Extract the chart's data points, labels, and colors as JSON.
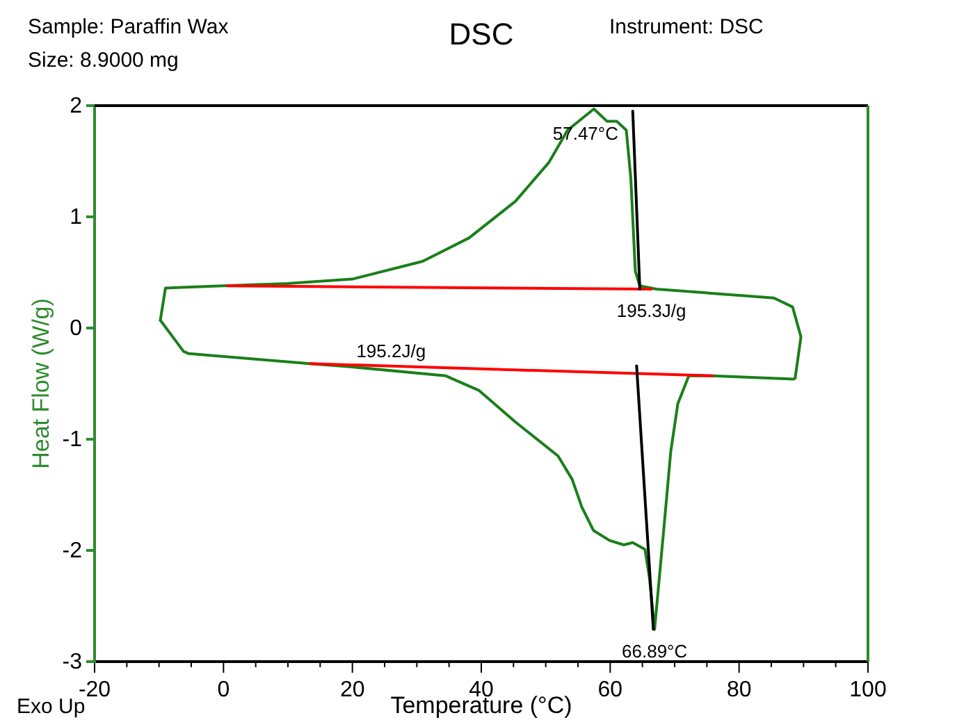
{
  "chart_data": {
    "type": "line",
    "title": "DSC",
    "xlabel": "Temperature (°C)",
    "ylabel": "Heat Flow (W/g)",
    "xlim": [
      -20,
      100
    ],
    "ylim": [
      -3,
      2
    ],
    "xticks": [
      -20,
      {
        "value": -15,
        "label": null
      },
      {
        "value": -10,
        "label": null
      },
      {
        "value": -5,
        "label": null
      },
      0,
      {
        "value": 5,
        "label": null
      },
      {
        "value": 10,
        "label": null
      },
      {
        "value": 15,
        "label": null
      },
      20,
      {
        "value": 25,
        "label": null
      },
      {
        "value": 30,
        "label": null
      },
      {
        "value": 35,
        "label": null
      },
      40,
      {
        "value": 45,
        "label": null
      },
      {
        "value": 50,
        "label": null
      },
      {
        "value": 55,
        "label": null
      },
      60,
      {
        "value": 65,
        "label": null
      },
      {
        "value": 70,
        "label": null
      },
      {
        "value": 75,
        "label": null
      },
      80,
      {
        "value": 85,
        "label": null
      },
      {
        "value": 90,
        "label": null
      },
      {
        "value": 95,
        "label": null
      },
      100
    ],
    "yticks": [
      -3,
      -2,
      -1,
      0,
      1,
      2
    ],
    "series": [
      {
        "color": "#1a7f1a",
        "x": [
          -9.8,
          -9.0,
          0,
          9.8,
          20,
          30.9,
          38.1,
          45.3,
          50.5,
          53.4,
          57.47,
          59.5,
          61,
          62.5,
          63.2,
          63.9,
          64.6,
          67.2,
          85.4,
          88.3,
          89.6,
          88.7
        ],
        "values": [
          0.07,
          0.36,
          0.38,
          0.4,
          0.44,
          0.6,
          0.81,
          1.14,
          1.49,
          1.78,
          1.97,
          1.86,
          1.86,
          1.78,
          1.35,
          0.51,
          0.38,
          0.35,
          0.27,
          0.19,
          -0.08,
          -0.45
        ]
      },
      {
        "color": "#1a7f1a",
        "x": [
          -9.8,
          -6.2,
          -5.4,
          13.4,
          20,
          34.5,
          39.6,
          45.4,
          51.9,
          54.1,
          55.6,
          57.4,
          59.9,
          62.1,
          63.5,
          65.4,
          66.1,
          66.89,
          68.3,
          69.4,
          70.5,
          72.2,
          75.9,
          88.5,
          88.7
        ],
        "values": [
          0.07,
          -0.21,
          -0.23,
          -0.32,
          -0.35,
          -0.43,
          -0.56,
          -0.85,
          -1.15,
          -1.36,
          -1.61,
          -1.82,
          -1.91,
          -1.95,
          -1.93,
          -1.99,
          -2.25,
          -2.71,
          -1.82,
          -1.11,
          -0.68,
          -0.43,
          -0.43,
          -0.46,
          -0.45
        ]
      },
      {
        "color": "#ff0000",
        "x": [
          0.6,
          66.4
        ],
        "values": [
          0.38,
          0.35
        ]
      },
      {
        "color": "#ff0000",
        "x": [
          13.4,
          75.9
        ],
        "values": [
          -0.32,
          -0.43
        ]
      },
      {
        "color": "#000000",
        "x": [
          63.5,
          64.6
        ],
        "values": [
          1.95,
          0.35
        ]
      },
      {
        "color": "#000000",
        "x": [
          64.1,
          66.7
        ],
        "values": [
          -0.34,
          -2.71
        ]
      }
    ],
    "annotations": [
      "Sample: Paraffin Wax",
      "Size:  8.9000 mg",
      "Instrument: DSC",
      "Exo Up",
      {
        "text": "57.47°C",
        "x": 57.47,
        "y": 1.97
      },
      {
        "text": "195.3J/g",
        "x": 66.4,
        "y": 0.35
      },
      {
        "text": "195.2J/g",
        "x": 26,
        "y": -0.36
      },
      {
        "text": "66.89°C",
        "x": 66.89,
        "y": -2.71
      }
    ]
  }
}
